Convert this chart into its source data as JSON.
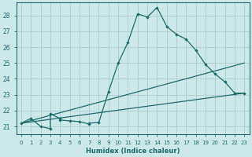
{
  "xlabel": "Humidex (Indice chaleur)",
  "bg_color": "#cde8e8",
  "line_color": "#1a6b6b",
  "grid_color": "#aacccc",
  "xlim": [
    -0.5,
    23.5
  ],
  "ylim": [
    20.5,
    28.8
  ],
  "xticks": [
    0,
    1,
    2,
    3,
    4,
    5,
    6,
    7,
    8,
    9,
    10,
    11,
    12,
    13,
    14,
    15,
    16,
    17,
    18,
    19,
    20,
    21,
    22,
    23
  ],
  "yticks": [
    21,
    22,
    23,
    24,
    25,
    26,
    27,
    28
  ],
  "line1_x": [
    0,
    1,
    2,
    3,
    3,
    4,
    4,
    5,
    6,
    7,
    7,
    8,
    9,
    10,
    11,
    12,
    13,
    14,
    15,
    16,
    17,
    18,
    19,
    20,
    21,
    22,
    23
  ],
  "line1_y": [
    21.2,
    21.5,
    21.0,
    20.85,
    21.8,
    21.5,
    21.4,
    21.35,
    21.3,
    21.15,
    21.2,
    21.25,
    23.2,
    25.0,
    26.3,
    28.1,
    27.9,
    28.5,
    27.3,
    26.8,
    26.5,
    25.8,
    24.9,
    24.3,
    23.8,
    23.1,
    23.1
  ],
  "line2_x": [
    0,
    23
  ],
  "line2_y": [
    21.2,
    23.1
  ],
  "line3_x": [
    0,
    23
  ],
  "line3_y": [
    21.2,
    25.0
  ],
  "xtick_fontsize": 5.0,
  "ytick_fontsize": 5.5,
  "xlabel_fontsize": 6.0
}
